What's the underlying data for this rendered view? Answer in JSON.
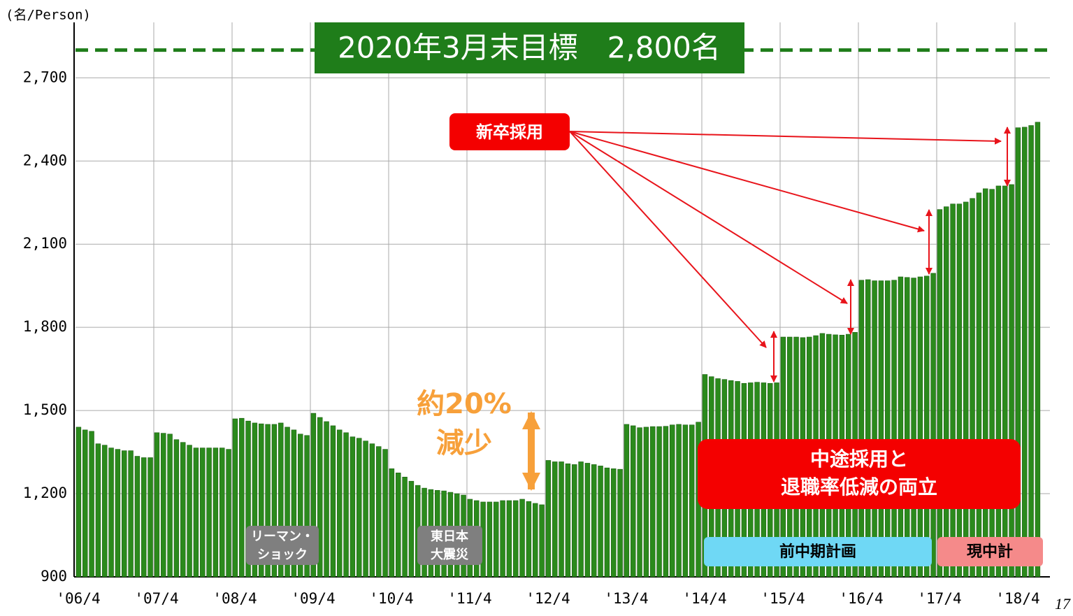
{
  "chart_data": {
    "type": "bar",
    "y_unit_label": "(名/Person)",
    "title": "2020年3月末目標　2,800名",
    "target": 2800,
    "categories": [
      "'06/4",
      null,
      null,
      null,
      null,
      null,
      null,
      null,
      null,
      null,
      null,
      null,
      "'07/4",
      null,
      null,
      null,
      null,
      null,
      null,
      null,
      null,
      null,
      null,
      null,
      "'08/4",
      null,
      null,
      null,
      null,
      null,
      null,
      null,
      null,
      null,
      null,
      null,
      "'09/4",
      null,
      null,
      null,
      null,
      null,
      null,
      null,
      null,
      null,
      null,
      null,
      "'10/4",
      null,
      null,
      null,
      null,
      null,
      null,
      null,
      null,
      null,
      null,
      null,
      "'11/4",
      null,
      null,
      null,
      null,
      null,
      null,
      null,
      null,
      null,
      null,
      null,
      "'12/4",
      null,
      null,
      null,
      null,
      null,
      null,
      null,
      null,
      null,
      null,
      null,
      "'13/4",
      null,
      null,
      null,
      null,
      null,
      null,
      null,
      null,
      null,
      null,
      null,
      "'14/4",
      null,
      null,
      null,
      null,
      null,
      null,
      null,
      null,
      null,
      null,
      null,
      "'15/4",
      null,
      null,
      null,
      null,
      null,
      null,
      null,
      null,
      null,
      null,
      null,
      "'16/4",
      null,
      null,
      null,
      null,
      null,
      null,
      null,
      null,
      null,
      null,
      null,
      "'17/4",
      null,
      null,
      null,
      null,
      null,
      null,
      null,
      null,
      null,
      null,
      null,
      "'18/4",
      null,
      null,
      null
    ],
    "values": [
      1440,
      1430,
      1425,
      1380,
      1375,
      1365,
      1360,
      1355,
      1355,
      1335,
      1330,
      1330,
      1420,
      1418,
      1415,
      1395,
      1385,
      1375,
      1365,
      1365,
      1365,
      1365,
      1365,
      1360,
      1470,
      1472,
      1462,
      1455,
      1452,
      1450,
      1450,
      1455,
      1440,
      1430,
      1415,
      1410,
      1490,
      1475,
      1460,
      1445,
      1430,
      1420,
      1405,
      1400,
      1390,
      1380,
      1370,
      1360,
      1290,
      1275,
      1260,
      1245,
      1230,
      1220,
      1215,
      1212,
      1210,
      1205,
      1200,
      1195,
      1180,
      1175,
      1170,
      1170,
      1170,
      1175,
      1175,
      1175,
      1180,
      1172,
      1165,
      1160,
      1320,
      1315,
      1315,
      1308,
      1305,
      1315,
      1310,
      1305,
      1300,
      1293,
      1290,
      1288,
      1450,
      1445,
      1438,
      1440,
      1442,
      1442,
      1443,
      1448,
      1450,
      1448,
      1448,
      1458,
      1630,
      1622,
      1615,
      1612,
      1608,
      1605,
      1598,
      1600,
      1602,
      1600,
      1598,
      1600,
      1765,
      1765,
      1765,
      1763,
      1765,
      1770,
      1778,
      1775,
      1773,
      1772,
      1775,
      1782,
      1970,
      1972,
      1968,
      1968,
      1968,
      1970,
      1982,
      1980,
      1978,
      1982,
      1985,
      1995,
      2225,
      2235,
      2245,
      2245,
      2252,
      2265,
      2285,
      2300,
      2298,
      2310,
      2310,
      2315,
      2520,
      2522,
      2528,
      2540
    ],
    "color": "#2b8a1c",
    "ylim": [
      900,
      2900
    ],
    "yticks": [
      900,
      {
        "value": 1200,
        "label": "1,200"
      },
      {
        "value": 1500,
        "label": "1,500"
      },
      {
        "value": 1800,
        "label": "1,800"
      },
      {
        "value": 2100,
        "label": "2,100"
      },
      {
        "value": 2400,
        "label": "2,400"
      },
      {
        "value": 2700,
        "label": "2,700"
      }
    ],
    "grid": true,
    "annotations": {
      "new_grads": "新卒採用",
      "decline1": "約20%",
      "decline2": "減少",
      "midcareer1": "中途採用と",
      "midcareer2": "退職率低減の両立",
      "lehman1": "リーマン・",
      "lehman2": "ショック",
      "quake1": "東日本",
      "quake2": "大震災",
      "prev_plan": "前中期計画",
      "cur_plan": "現中計"
    },
    "page_number": "17"
  }
}
